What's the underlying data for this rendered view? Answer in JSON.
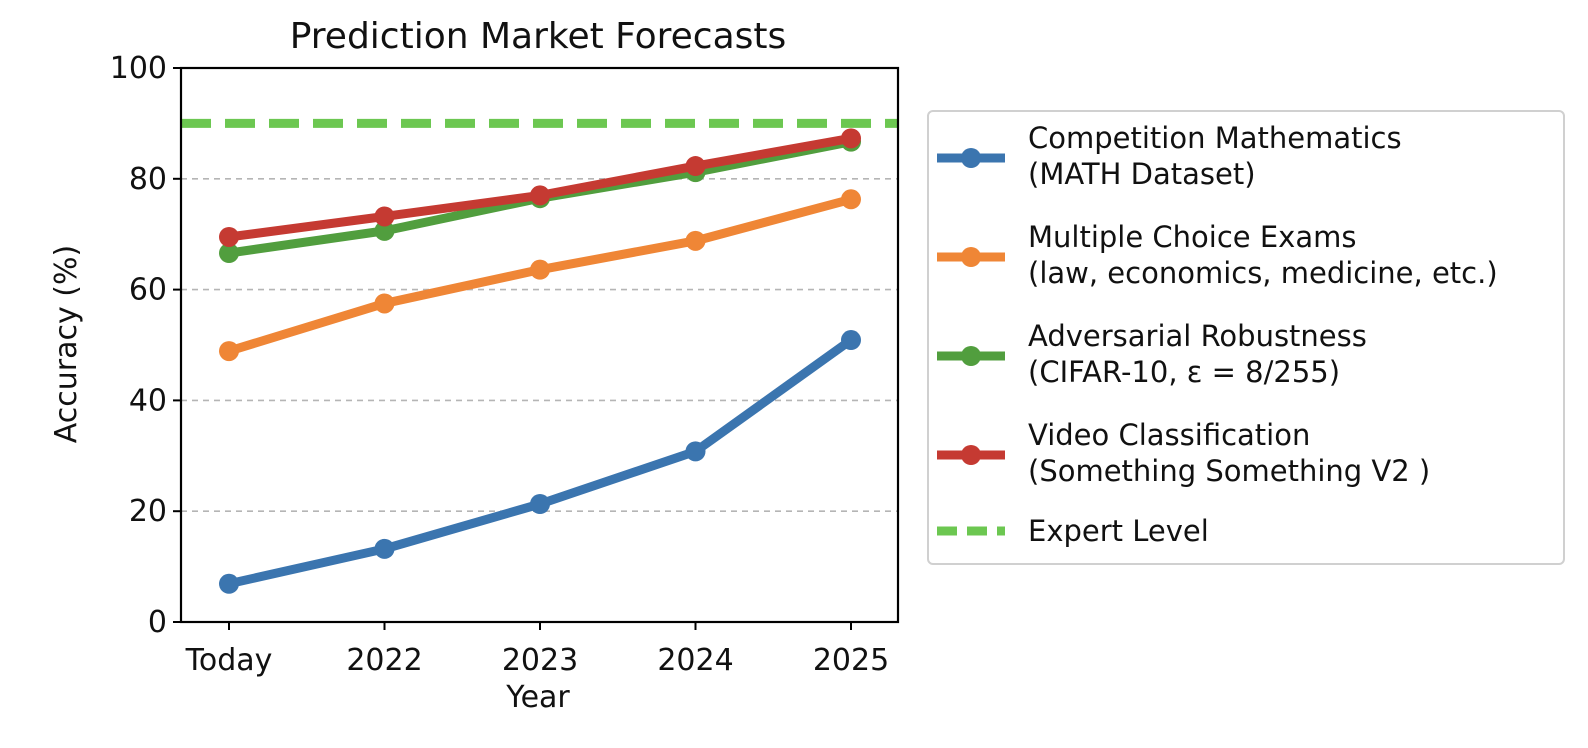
{
  "chart_data": {
    "type": "line",
    "title": "Prediction Market Forecasts",
    "xlabel": "Year",
    "ylabel": "Accuracy (%)",
    "categories": [
      "Today",
      "2022",
      "2023",
      "2024",
      "2025"
    ],
    "ylim": [
      0,
      100
    ],
    "yticks": [
      0,
      20,
      40,
      60,
      80,
      100
    ],
    "grid": "horizontal dashed at 20, 40, 60, 80",
    "legend_position": "right, outside plot",
    "series": [
      {
        "name": "Competition Mathematics",
        "subname": "(MATH Dataset)",
        "color": "#3b75af",
        "values": [
          6.9,
          13.2,
          21.3,
          30.8,
          50.9
        ]
      },
      {
        "name": "Multiple Choice Exams",
        "subname": "(law, economics, medicine, etc.)",
        "color": "#ef8636",
        "values": [
          48.9,
          57.5,
          63.6,
          68.8,
          76.3
        ]
      },
      {
        "name": "Adversarial Robustness",
        "subname": "(CIFAR-10, ε = 8/255)",
        "color": "#519e3e",
        "values": [
          66.6,
          70.6,
          76.5,
          81.2,
          86.7
        ]
      },
      {
        "name": "Video Classification",
        "subname": "(Something Something V2 )",
        "color": "#c53a32",
        "values": [
          69.5,
          73.2,
          77.0,
          82.3,
          87.3
        ]
      }
    ],
    "reference_line": {
      "name": "Expert Level",
      "value": 90,
      "color": "#6cc751",
      "style": "dashed"
    }
  }
}
